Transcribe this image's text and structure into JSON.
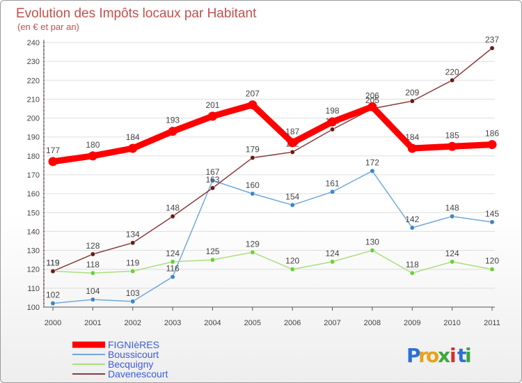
{
  "chart_data": {
    "type": "line",
    "title": "Evolution des Impôts locaux par Habitant",
    "subtitle": "(en € et par an)",
    "xlabel": "",
    "ylabel": "",
    "categories": [
      "2000",
      "2001",
      "2002",
      "2003",
      "2004",
      "2005",
      "2006",
      "2007",
      "2008",
      "2009",
      "2010",
      "2011"
    ],
    "ylim": [
      100,
      240
    ],
    "yticks": [
      100,
      110,
      120,
      130,
      140,
      150,
      160,
      170,
      180,
      190,
      200,
      210,
      220,
      230,
      240
    ],
    "grid": "horizontal",
    "legend_position": "bottom-left",
    "series": [
      {
        "name": "FIGNIèRES",
        "color": "#ff0000",
        "marker_color": "#ff0000",
        "emphasis": "bold",
        "values": [
          177,
          180,
          184,
          193,
          201,
          207,
          187,
          198,
          206,
          184,
          185,
          186
        ]
      },
      {
        "name": "Boussicourt",
        "color": "#6fa8dc",
        "marker_color": "#3d85c6",
        "emphasis": "thin",
        "values": [
          102,
          104,
          103,
          116,
          167,
          160,
          154,
          161,
          172,
          142,
          148,
          145
        ]
      },
      {
        "name": "Becquigny",
        "color": "#a8e07a",
        "marker_color": "#6ccf3a",
        "emphasis": "thin",
        "values": [
          119,
          118,
          119,
          124,
          125,
          129,
          120,
          124,
          130,
          118,
          124,
          120
        ]
      },
      {
        "name": "Davenescourt",
        "color": "#8b3a3a",
        "marker_color": "#6b1a1a",
        "emphasis": "thin",
        "values": [
          119,
          128,
          134,
          148,
          163,
          179,
          182,
          194,
          205,
          209,
          220,
          237
        ]
      }
    ]
  },
  "logo": {
    "text": "Proxiti",
    "letters": [
      "P",
      "r",
      "o",
      "x",
      "i",
      "t",
      "i"
    ],
    "colors": [
      "#2e6fd6",
      "#e8a31c",
      "#e8a31c",
      "#3aa83a",
      "#d62e2e",
      "#2e6fd6",
      "#3aa83a"
    ]
  },
  "colors": {
    "title": "#c0504d",
    "axis": "#555555",
    "grid": "#dddddd",
    "label": "#444444",
    "legend_text": "#3b5bdb"
  }
}
